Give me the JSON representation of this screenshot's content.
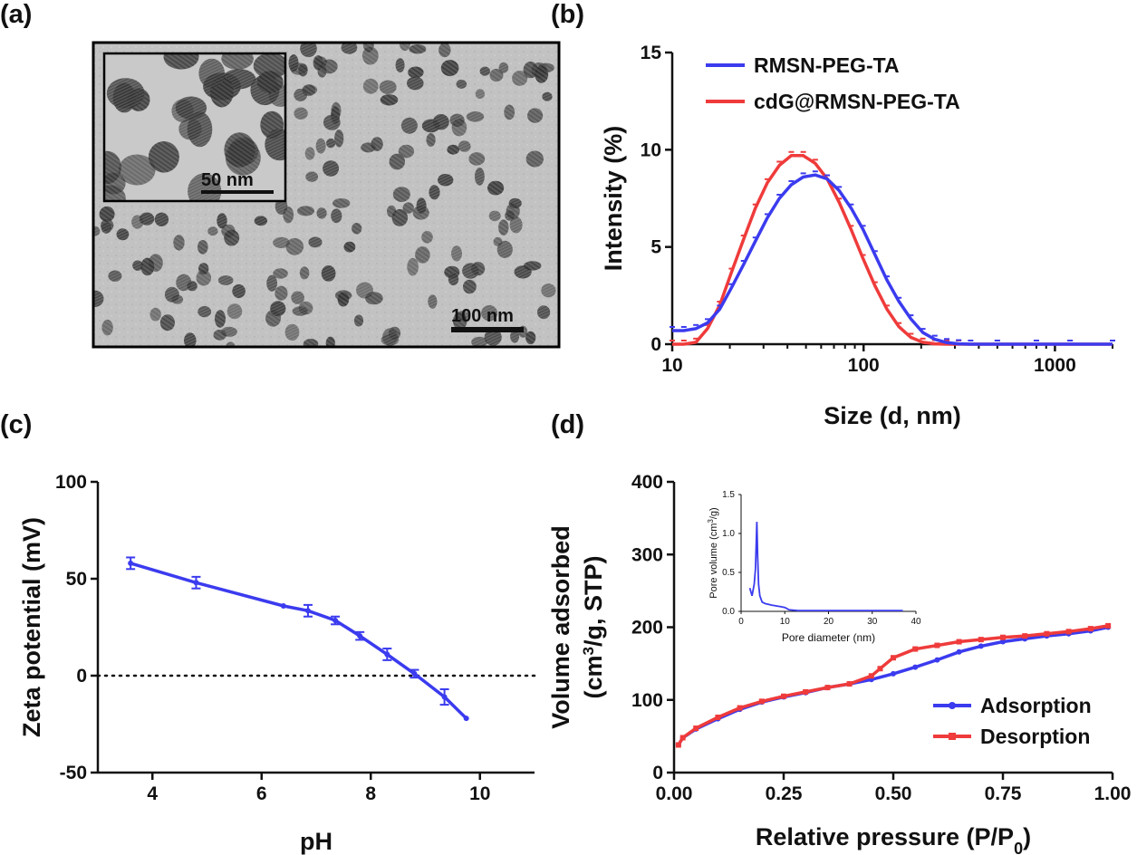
{
  "panel_labels": [
    "(a)",
    "(b)",
    "(c)",
    "(d)"
  ],
  "panel_a": {
    "scale_bar_main": "100 nm",
    "scale_bar_inset": "50 nm"
  },
  "colors": {
    "blue": "#3b3bef",
    "red": "#ef3b3b"
  },
  "chart_data": [
    {
      "id": "b",
      "type": "line",
      "xscale": "log",
      "xlabel": "Size (d, nm)",
      "ylabel": "Intensity (%)",
      "xlim": [
        10,
        2000
      ],
      "ylim": [
        0,
        15
      ],
      "xticks": [
        10,
        100,
        1000
      ],
      "xtick_labels": [
        "10",
        "100",
        "1000"
      ],
      "yticks": [
        0,
        5,
        10,
        15
      ],
      "ytick_labels": [
        "0",
        "5",
        "10",
        "15"
      ],
      "legend_position": "top-left",
      "series": [
        {
          "name": "RMSN-PEG-TA",
          "color": "#3b3bef",
          "x": [
            10,
            11.5,
            13.3,
            15.3,
            17.7,
            20.4,
            23.6,
            27.2,
            31.4,
            36.3,
            41.9,
            48.4,
            55.9,
            64.5,
            74.5,
            86,
            99.3,
            114.7,
            132.4,
            152.9,
            176.6,
            203.9,
            235.5,
            271.9,
            314,
            362.6,
            500,
            800,
            1200,
            2000
          ],
          "y": [
            0.7,
            0.7,
            0.8,
            1.1,
            1.8,
            2.9,
            4.1,
            5.3,
            6.5,
            7.5,
            8.2,
            8.6,
            8.7,
            8.5,
            7.9,
            7.0,
            5.9,
            4.6,
            3.3,
            2.2,
            1.3,
            0.6,
            0.25,
            0.08,
            0.02,
            0.0,
            0.0,
            0.0,
            0.0,
            0.0
          ]
        },
        {
          "name": "cdG@RMSN-PEG-TA",
          "color": "#ef3b3b",
          "x": [
            10,
            11.5,
            13.3,
            15.3,
            17.7,
            20.4,
            23.6,
            27.2,
            31.4,
            36.3,
            41.9,
            48.4,
            55.9,
            64.5,
            74.5,
            86,
            99.3,
            114.7,
            132.4,
            152.9,
            176.6,
            203.9,
            235.5,
            271.9,
            314,
            500,
            800,
            1200,
            2000
          ],
          "y": [
            0.0,
            0.0,
            0.1,
            0.8,
            2.0,
            3.7,
            5.4,
            7.0,
            8.3,
            9.2,
            9.7,
            9.7,
            9.3,
            8.5,
            7.3,
            5.9,
            4.4,
            3.0,
            1.8,
            0.9,
            0.35,
            0.1,
            0.02,
            0.0,
            0.0,
            0.0,
            0.0,
            0.0,
            0.0
          ]
        }
      ]
    },
    {
      "id": "c",
      "type": "line",
      "xlabel": "pH",
      "ylabel": "Zeta potential (mV)",
      "xlim": [
        3,
        11
      ],
      "ylim": [
        -50,
        100
      ],
      "xticks": [
        4,
        6,
        8,
        10
      ],
      "xtick_labels": [
        "4",
        "6",
        "8",
        "10"
      ],
      "yticks": [
        -50,
        0,
        50,
        100
      ],
      "ytick_labels": [
        "-50",
        "0",
        "50",
        "100"
      ],
      "reference_line_y": 0,
      "series": [
        {
          "name": "",
          "color": "#3b3bef",
          "x": [
            3.6,
            4.8,
            6.4,
            6.85,
            7.35,
            7.8,
            8.3,
            8.8,
            9.35,
            9.75
          ],
          "y": [
            58,
            48,
            36,
            33.5,
            28.5,
            20.5,
            11,
            1,
            -11,
            -22
          ],
          "err": [
            3,
            3,
            0,
            3,
            2,
            2,
            3,
            2,
            4,
            0
          ]
        }
      ]
    },
    {
      "id": "d",
      "type": "line",
      "xlabel": "Relative pressure (P/P",
      "xlabel_sub": "0",
      "xlabel_end": ")",
      "ylabel_line1": "Volume adsorbed",
      "ylabel_line2_a": "(cm",
      "ylabel_line2_sup": "3",
      "ylabel_line2_b": "/g, STP)",
      "xlim": [
        0,
        1
      ],
      "ylim": [
        0,
        400
      ],
      "xticks": [
        0,
        0.25,
        0.5,
        0.75,
        1.0
      ],
      "xtick_labels": [
        "0.00",
        "0.25",
        "0.50",
        "0.75",
        "1.00"
      ],
      "yticks": [
        0,
        100,
        200,
        300,
        400
      ],
      "ytick_labels": [
        "0",
        "100",
        "200",
        "300",
        "400"
      ],
      "legend_position": "bottom-right",
      "series": [
        {
          "name": "Adsorption",
          "color": "#3b3bef",
          "x": [
            0.01,
            0.02,
            0.05,
            0.1,
            0.15,
            0.2,
            0.25,
            0.3,
            0.35,
            0.4,
            0.45,
            0.5,
            0.55,
            0.6,
            0.65,
            0.7,
            0.75,
            0.8,
            0.85,
            0.9,
            0.95,
            0.99
          ],
          "y": [
            38,
            48,
            60,
            74,
            87,
            97,
            104,
            110,
            117,
            122,
            128,
            136,
            145,
            155,
            166,
            174,
            180,
            184,
            188,
            191,
            195,
            200
          ]
        },
        {
          "name": "Desorption",
          "color": "#ef3b3b",
          "x": [
            0.99,
            0.95,
            0.9,
            0.85,
            0.8,
            0.75,
            0.7,
            0.65,
            0.6,
            0.55,
            0.5,
            0.47,
            0.45,
            0.4,
            0.35,
            0.3,
            0.25,
            0.2,
            0.15,
            0.1,
            0.05,
            0.02,
            0.01
          ],
          "y": [
            202,
            198,
            194,
            191,
            188,
            186,
            183,
            180,
            175,
            170,
            158,
            143,
            133,
            122,
            117,
            111,
            105,
            98,
            89,
            76,
            61,
            48,
            38
          ]
        }
      ]
    },
    {
      "id": "d-inset",
      "type": "line",
      "xlabel": "Pore diameter (nm)",
      "ylabel_a": "Pore volume (cm",
      "ylabel_sup": "3",
      "ylabel_b": "/g)",
      "xlim": [
        0,
        40
      ],
      "ylim": [
        0,
        1.5
      ],
      "xticks": [
        0,
        10,
        20,
        30,
        40
      ],
      "xtick_labels": [
        "0",
        "10",
        "20",
        "30",
        "40"
      ],
      "yticks": [
        0,
        0.5,
        1.0,
        1.5
      ],
      "ytick_labels": [
        "0.0",
        "0.5",
        "1.0",
        "1.5"
      ],
      "series": [
        {
          "name": "",
          "color": "#3b3bef",
          "x": [
            2,
            2.5,
            3,
            3.3,
            3.6,
            3.8,
            4.0,
            4.3,
            4.8,
            5.5,
            7,
            9,
            10,
            11,
            13,
            20,
            30,
            37
          ],
          "y": [
            0.3,
            0.2,
            0.35,
            0.55,
            1.15,
            0.7,
            0.35,
            0.2,
            0.12,
            0.1,
            0.08,
            0.06,
            0.05,
            0.02,
            0.01,
            0.01,
            0.01,
            0.01
          ]
        }
      ]
    }
  ]
}
